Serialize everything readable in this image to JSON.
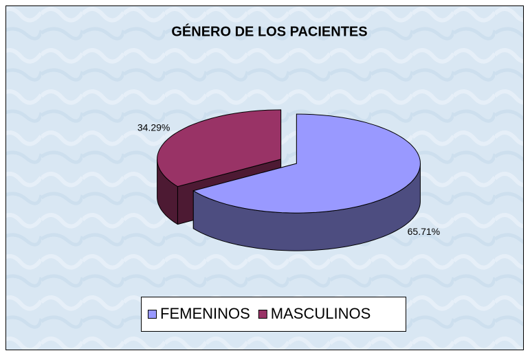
{
  "chart_data": {
    "type": "pie",
    "title": "GÉNERO DE LOS PACIENTES",
    "categories": [
      "FEMENINOS",
      "MASCULINOS"
    ],
    "values": [
      65.71,
      34.29
    ],
    "value_labels": [
      "65.71%",
      "34.29%"
    ],
    "colors": [
      "#9999ff",
      "#993366"
    ],
    "legend": "bottom"
  }
}
